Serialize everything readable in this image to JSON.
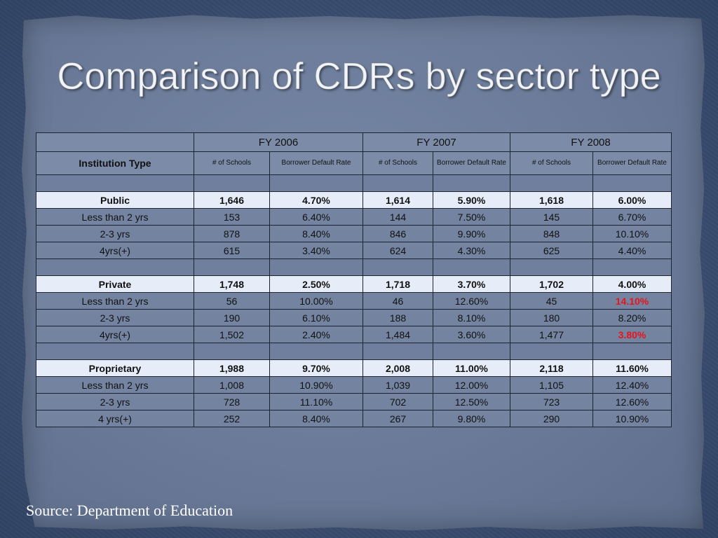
{
  "title": "Comparison of CDRs by sector type",
  "years": [
    "FY 2006",
    "FY 2007",
    "FY 2008"
  ],
  "header": {
    "institution_type": "Institution Type",
    "schools_label": "# of Schools",
    "rate_label": "Borrower Default Rate"
  },
  "rows": {
    "public": [
      "Public",
      "1,646",
      "4.70%",
      "1,614",
      "5.90%",
      "1,618",
      "6.00%"
    ],
    "public_lt2": [
      "Less than 2 yrs",
      "153",
      "6.40%",
      "144",
      "7.50%",
      "145",
      "6.70%"
    ],
    "public_23": [
      "2-3 yrs",
      "878",
      "8.40%",
      "846",
      "9.90%",
      "848",
      "10.10%"
    ],
    "public_4": [
      "4yrs(+)",
      "615",
      "3.40%",
      "624",
      "4.30%",
      "625",
      "4.40%"
    ],
    "private": [
      "Private",
      "1,748",
      "2.50%",
      "1,718",
      "3.70%",
      "1,702",
      "4.00%"
    ],
    "private_lt2": [
      "Less than 2 yrs",
      "56",
      "10.00%",
      "46",
      "12.60%",
      "45",
      "14.10%"
    ],
    "private_23": [
      "2-3 yrs",
      "190",
      "6.10%",
      "188",
      "8.10%",
      "180",
      "8.20%"
    ],
    "private_4": [
      "4yrs(+)",
      "1,502",
      "2.40%",
      "1,484",
      "3.60%",
      "1,477",
      "3.80%"
    ],
    "proprietary": [
      "Proprietary",
      "1,988",
      "9.70%",
      "2,008",
      "11.00%",
      "2,118",
      "11.60%"
    ],
    "proprietary_lt2": [
      "Less than 2 yrs",
      "1,008",
      "10.90%",
      "1,039",
      "12.00%",
      "1,105",
      "12.40%"
    ],
    "proprietary_23": [
      "2-3 yrs",
      "728",
      "11.10%",
      "702",
      "12.50%",
      "723",
      "12.60%"
    ],
    "proprietary_4": [
      "4 yrs(+)",
      "252",
      "8.40%",
      "267",
      "9.80%",
      "290",
      "10.90%"
    ]
  },
  "highlight_color": "#e8141b",
  "source": "Source: Department of Education"
}
